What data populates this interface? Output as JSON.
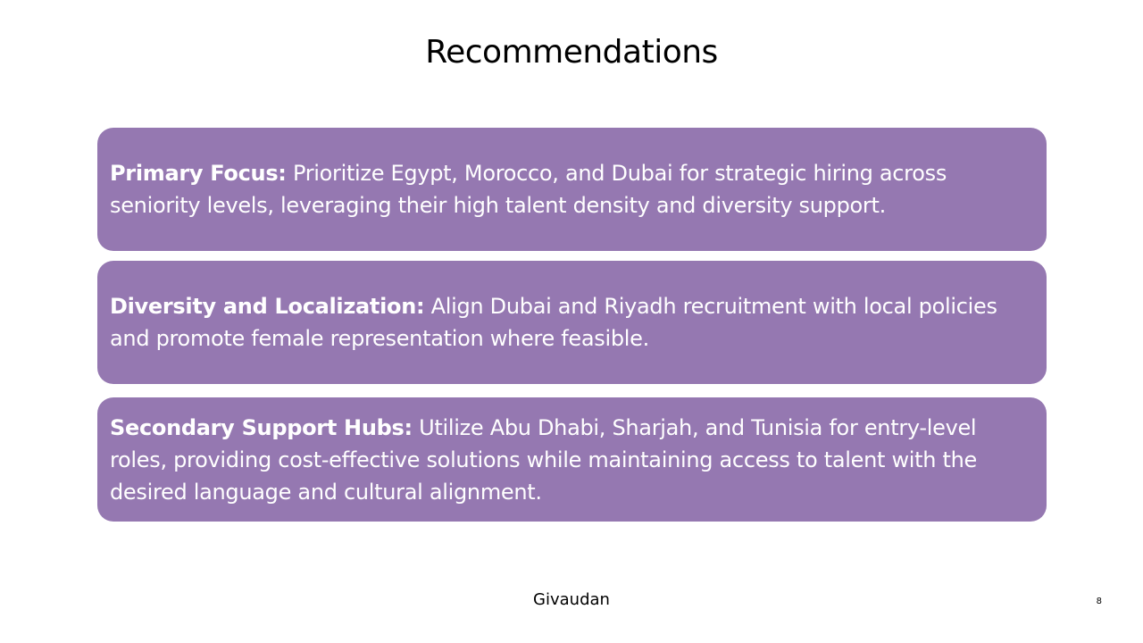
{
  "slide": {
    "title": "Recommendations",
    "card_color": "#9578b1",
    "cards": [
      {
        "lead": "Primary Focus:",
        "text": " Prioritize Egypt, Morocco, and Dubai for strategic hiring across seniority levels, leveraging their high talent density and diversity support."
      },
      {
        "lead": "Diversity and Localization:",
        "text": " Align Dubai and Riyadh recruitment with local policies and promote female representation where feasible."
      },
      {
        "lead": "Secondary Support Hubs:",
        "text": " Utilize Abu Dhabi, Sharjah, and Tunisia for entry-level roles, providing cost-effective solutions while maintaining access to talent with the desired language and cultural alignment."
      }
    ]
  },
  "footer": {
    "brand": "Givaudan",
    "page_number": "8"
  }
}
